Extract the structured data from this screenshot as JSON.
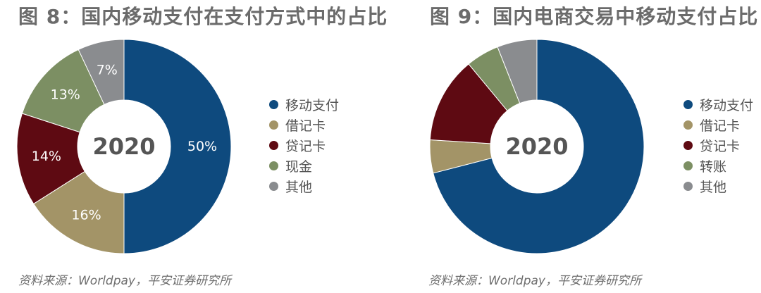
{
  "chart_data": [
    {
      "type": "pie",
      "title": "图 8：国内移动支付在支付方式中的占比",
      "center_label": "2020",
      "categories": [
        "移动支付",
        "借记卡",
        "贷记卡",
        "现金",
        "其他"
      ],
      "values": [
        50,
        16,
        14,
        13,
        7
      ],
      "value_labels": [
        "50%",
        "16%",
        "14%",
        "13%",
        "7%"
      ],
      "colors": [
        "#0e4a7e",
        "#a39467",
        "#5e0a12",
        "#7c8f63",
        "#8a8c8f"
      ],
      "legend_position": "right",
      "source": "资料来源：Worldpay，平安证券研究所"
    },
    {
      "type": "pie",
      "title": "图 9：国内电商交易中移动支付占比",
      "center_label": "2020",
      "categories": [
        "移动支付",
        "借记卡",
        "贷记卡",
        "转账",
        "其他"
      ],
      "values": [
        71,
        5,
        13,
        5,
        6
      ],
      "colors": [
        "#0e4a7e",
        "#a39467",
        "#5e0a12",
        "#7c8f63",
        "#8a8c8f"
      ],
      "legend_position": "right",
      "source": "资料来源：Worldpay，平安证券研究所"
    }
  ]
}
